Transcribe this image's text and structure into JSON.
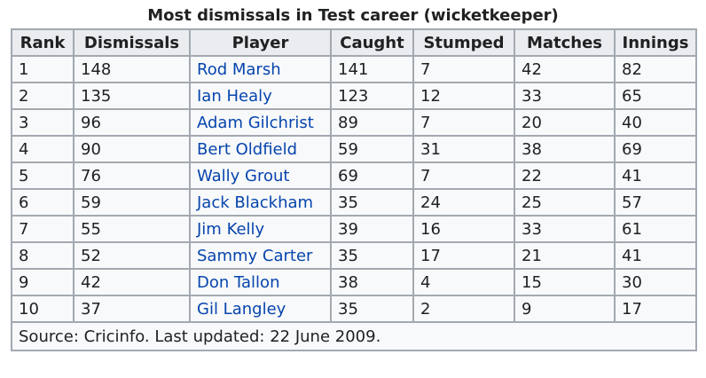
{
  "caption": "Most dismissals in Test career (wicketkeeper)",
  "columns": [
    "Rank",
    "Dismissals",
    "Player",
    "Caught",
    "Stumped",
    "Matches",
    "Innings"
  ],
  "rows": [
    {
      "rank": "1",
      "dismissals": "148",
      "player": "Rod Marsh",
      "caught": "141",
      "stumped": "7",
      "matches": "42",
      "innings": "82"
    },
    {
      "rank": "2",
      "dismissals": "135",
      "player": "Ian Healy",
      "caught": "123",
      "stumped": "12",
      "matches": "33",
      "innings": "65"
    },
    {
      "rank": "3",
      "dismissals": "96",
      "player": "Adam Gilchrist",
      "caught": "89",
      "stumped": "7",
      "matches": "20",
      "innings": "40"
    },
    {
      "rank": "4",
      "dismissals": "90",
      "player": "Bert Oldfield",
      "caught": "59",
      "stumped": "31",
      "matches": "38",
      "innings": "69"
    },
    {
      "rank": "5",
      "dismissals": "76",
      "player": "Wally Grout",
      "caught": "69",
      "stumped": "7",
      "matches": "22",
      "innings": "41"
    },
    {
      "rank": "6",
      "dismissals": "59",
      "player": "Jack Blackham",
      "caught": "35",
      "stumped": "24",
      "matches": "25",
      "innings": "57"
    },
    {
      "rank": "7",
      "dismissals": "55",
      "player": "Jim Kelly",
      "caught": "39",
      "stumped": "16",
      "matches": "33",
      "innings": "61"
    },
    {
      "rank": "8",
      "dismissals": "52",
      "player": "Sammy Carter",
      "caught": "35",
      "stumped": "17",
      "matches": "21",
      "innings": "41"
    },
    {
      "rank": "9",
      "dismissals": "42",
      "player": "Don Tallon",
      "caught": "38",
      "stumped": "4",
      "matches": "15",
      "innings": "30"
    },
    {
      "rank": "10",
      "dismissals": "37",
      "player": "Gil Langley",
      "caught": "35",
      "stumped": "2",
      "matches": "9",
      "innings": "17"
    }
  ],
  "footer": "Source: Cricinfo. Last updated: 22 June 2009.",
  "colors": {
    "table_bg": "#f8f9fa",
    "header_bg": "#eaecf0",
    "border": "#a2a9b1",
    "link": "#0645ad",
    "text": "#202122"
  }
}
